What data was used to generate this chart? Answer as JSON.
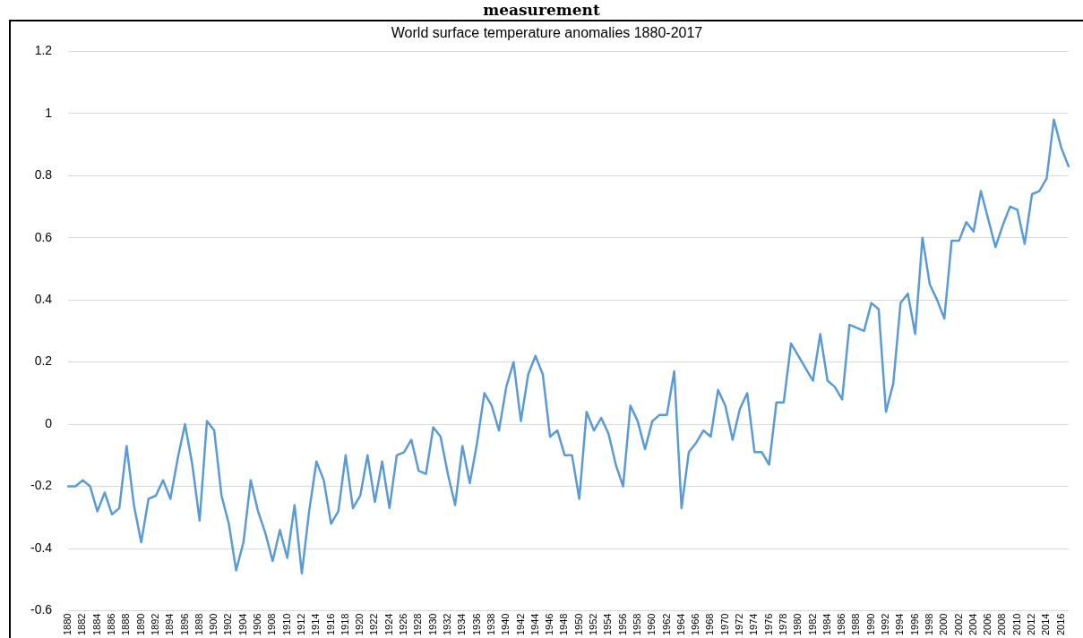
{
  "chart_data": {
    "type": "line",
    "title": "World surface temperature anomalies 1880-2017",
    "annotations": [
      "measurement"
    ],
    "categories": [
      "1880",
      null,
      "1882",
      null,
      "1884",
      null,
      "1886",
      null,
      "1888",
      null,
      "1890",
      null,
      "1892",
      null,
      "1894",
      null,
      "1896",
      null,
      "1898",
      null,
      "1900",
      null,
      "1902",
      null,
      "1904",
      null,
      "1906",
      null,
      "1908",
      null,
      "1910",
      null,
      "1912",
      null,
      "1914",
      null,
      "1916",
      null,
      "1918",
      null,
      "1920",
      null,
      "1922",
      null,
      "1924",
      null,
      "1926",
      null,
      "1928",
      null,
      "1930",
      null,
      "1932",
      null,
      "1934",
      null,
      "1936",
      null,
      "1938",
      null,
      "1940",
      null,
      "1942",
      null,
      "1944",
      null,
      "1946",
      null,
      "1948",
      null,
      "1950",
      null,
      "1952",
      null,
      "1954",
      null,
      "1956",
      null,
      "1958",
      null,
      "1960",
      null,
      "1962",
      null,
      "1964",
      null,
      "1966",
      null,
      "1968",
      null,
      "1970",
      null,
      "1972",
      null,
      "1974",
      null,
      "1976",
      null,
      "1978",
      null,
      "1980",
      null,
      "1982",
      null,
      "1984",
      null,
      "1986",
      null,
      "1988",
      null,
      "1990",
      null,
      "1992",
      null,
      "1994",
      null,
      "1996",
      null,
      "1998",
      null,
      "2000",
      null,
      "2002",
      null,
      "2004",
      null,
      "2006",
      null,
      "2008",
      null,
      "2010",
      null,
      "2012",
      null,
      "2014",
      null,
      "2016",
      null
    ],
    "series": [
      {
        "color": "#5b9bd5",
        "values": [
          -0.2,
          -0.2,
          -0.18,
          -0.2,
          -0.28,
          -0.22,
          -0.29,
          -0.27,
          -0.07,
          -0.26,
          -0.38,
          -0.24,
          -0.23,
          -0.18,
          -0.24,
          -0.11,
          0.0,
          -0.13,
          -0.31,
          0.01,
          -0.02,
          -0.23,
          -0.32,
          -0.47,
          -0.38,
          -0.18,
          -0.28,
          -0.35,
          -0.44,
          -0.34,
          -0.43,
          -0.26,
          -0.48,
          -0.28,
          -0.12,
          -0.18,
          -0.32,
          -0.28,
          -0.1,
          -0.27,
          -0.23,
          -0.1,
          -0.25,
          -0.12,
          -0.27,
          -0.1,
          -0.09,
          -0.05,
          -0.15,
          -0.16,
          -0.01,
          -0.04,
          -0.16,
          -0.26,
          -0.07,
          -0.19,
          -0.06,
          0.1,
          0.06,
          -0.02,
          0.12,
          0.2,
          0.01,
          0.16,
          0.22,
          0.16,
          -0.04,
          -0.02,
          -0.1,
          -0.1,
          -0.24,
          0.04,
          -0.02,
          0.02,
          -0.03,
          -0.13,
          -0.2,
          0.06,
          0.01,
          -0.08,
          0.01,
          0.03,
          0.03,
          0.17,
          -0.27,
          -0.09,
          -0.06,
          -0.02,
          -0.04,
          0.11,
          0.06,
          -0.05,
          0.05,
          0.1,
          -0.09,
          -0.09,
          -0.13,
          0.07,
          0.07,
          0.26,
          0.22,
          0.18,
          0.14,
          0.29,
          0.14,
          0.12,
          0.08,
          0.32,
          0.31,
          0.3,
          0.39,
          0.37,
          0.04,
          0.13,
          0.39,
          0.42,
          0.29,
          0.6,
          0.45,
          0.4,
          0.34,
          0.59,
          0.59,
          0.65,
          0.62,
          0.75,
          0.66,
          0.57,
          0.64,
          0.7,
          0.69,
          0.58,
          0.74,
          0.75,
          0.79,
          0.98,
          0.89,
          0.83
        ]
      }
    ],
    "ylim": [
      -0.6,
      1.2
    ],
    "yticks": [
      -0.6,
      -0.4,
      -0.2,
      0,
      0.2,
      0.4,
      0.6,
      0.8,
      1,
      1.2
    ],
    "grid": "y",
    "legend": false,
    "marker": "none",
    "line_style": "solid"
  }
}
